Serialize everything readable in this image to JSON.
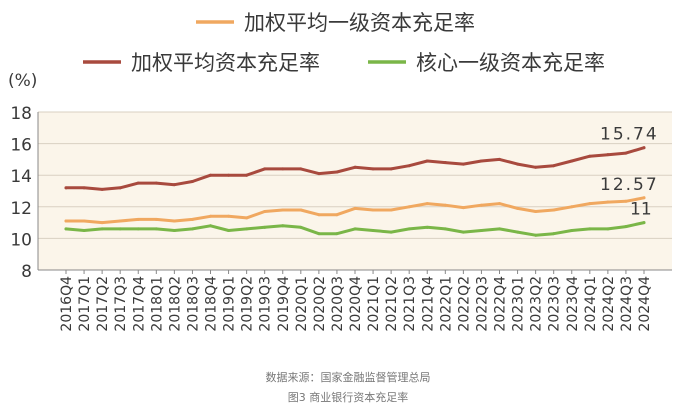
{
  "chart_data": {
    "type": "line",
    "ylabel": "(%)",
    "ylim": [
      8,
      18
    ],
    "yticks": [
      "8",
      "10",
      "12",
      "14",
      "16",
      "18"
    ],
    "grid": true,
    "legend_position": "top",
    "categories": [
      "2016Q4",
      "2017Q1",
      "2017Q2",
      "2017Q3",
      "2017Q4",
      "2018Q1",
      "2018Q2",
      "2018Q3",
      "2018Q4",
      "2019Q1",
      "2019Q2",
      "2019Q3",
      "2019Q4",
      "2020Q1",
      "2020Q2",
      "2020Q3",
      "2020Q4",
      "2021Q1",
      "2021Q2",
      "2021Q3",
      "2021Q4",
      "2022Q1",
      "2022Q2",
      "2022Q3",
      "2022Q4",
      "2023Q1",
      "2023Q2",
      "2023Q3",
      "2023Q4",
      "2024Q1",
      "2024Q2",
      "2024Q3",
      "2024Q4"
    ],
    "series": [
      {
        "name": "加权平均一级资本充足率",
        "color": "#f0a860",
        "values": [
          11.1,
          11.1,
          11.0,
          11.1,
          11.2,
          11.2,
          11.1,
          11.2,
          11.4,
          11.4,
          11.3,
          11.7,
          11.8,
          11.8,
          11.5,
          11.5,
          11.9,
          11.8,
          11.8,
          12.0,
          12.2,
          12.1,
          11.95,
          12.1,
          12.2,
          11.9,
          11.7,
          11.8,
          12.0,
          12.2,
          12.3,
          12.35,
          12.57
        ]
      },
      {
        "name": "加权平均资本充足率",
        "color": "#a84a3e",
        "values": [
          13.2,
          13.2,
          13.1,
          13.2,
          13.5,
          13.5,
          13.4,
          13.6,
          14.0,
          14.0,
          14.0,
          14.4,
          14.4,
          14.4,
          14.1,
          14.2,
          14.5,
          14.4,
          14.4,
          14.6,
          14.9,
          14.8,
          14.7,
          14.9,
          15.0,
          14.7,
          14.5,
          14.6,
          14.9,
          15.2,
          15.3,
          15.4,
          15.74
        ]
      },
      {
        "name": "核心一级资本充足率",
        "color": "#7ab648",
        "values": [
          10.6,
          10.5,
          10.6,
          10.6,
          10.6,
          10.6,
          10.5,
          10.6,
          10.8,
          10.5,
          10.6,
          10.7,
          10.8,
          10.7,
          10.3,
          10.3,
          10.6,
          10.5,
          10.4,
          10.6,
          10.7,
          10.6,
          10.4,
          10.5,
          10.6,
          10.4,
          10.2,
          10.3,
          10.5,
          10.6,
          10.6,
          10.75,
          11
        ]
      }
    ],
    "data_labels": {
      "capital_adequacy_last": "15.74",
      "tier1_last": "12.57",
      "core_tier1_last": "11"
    }
  },
  "footer": {
    "source": "数据来源：国家金融监督管理总局",
    "caption": "图3 商业银行资本充足率"
  }
}
